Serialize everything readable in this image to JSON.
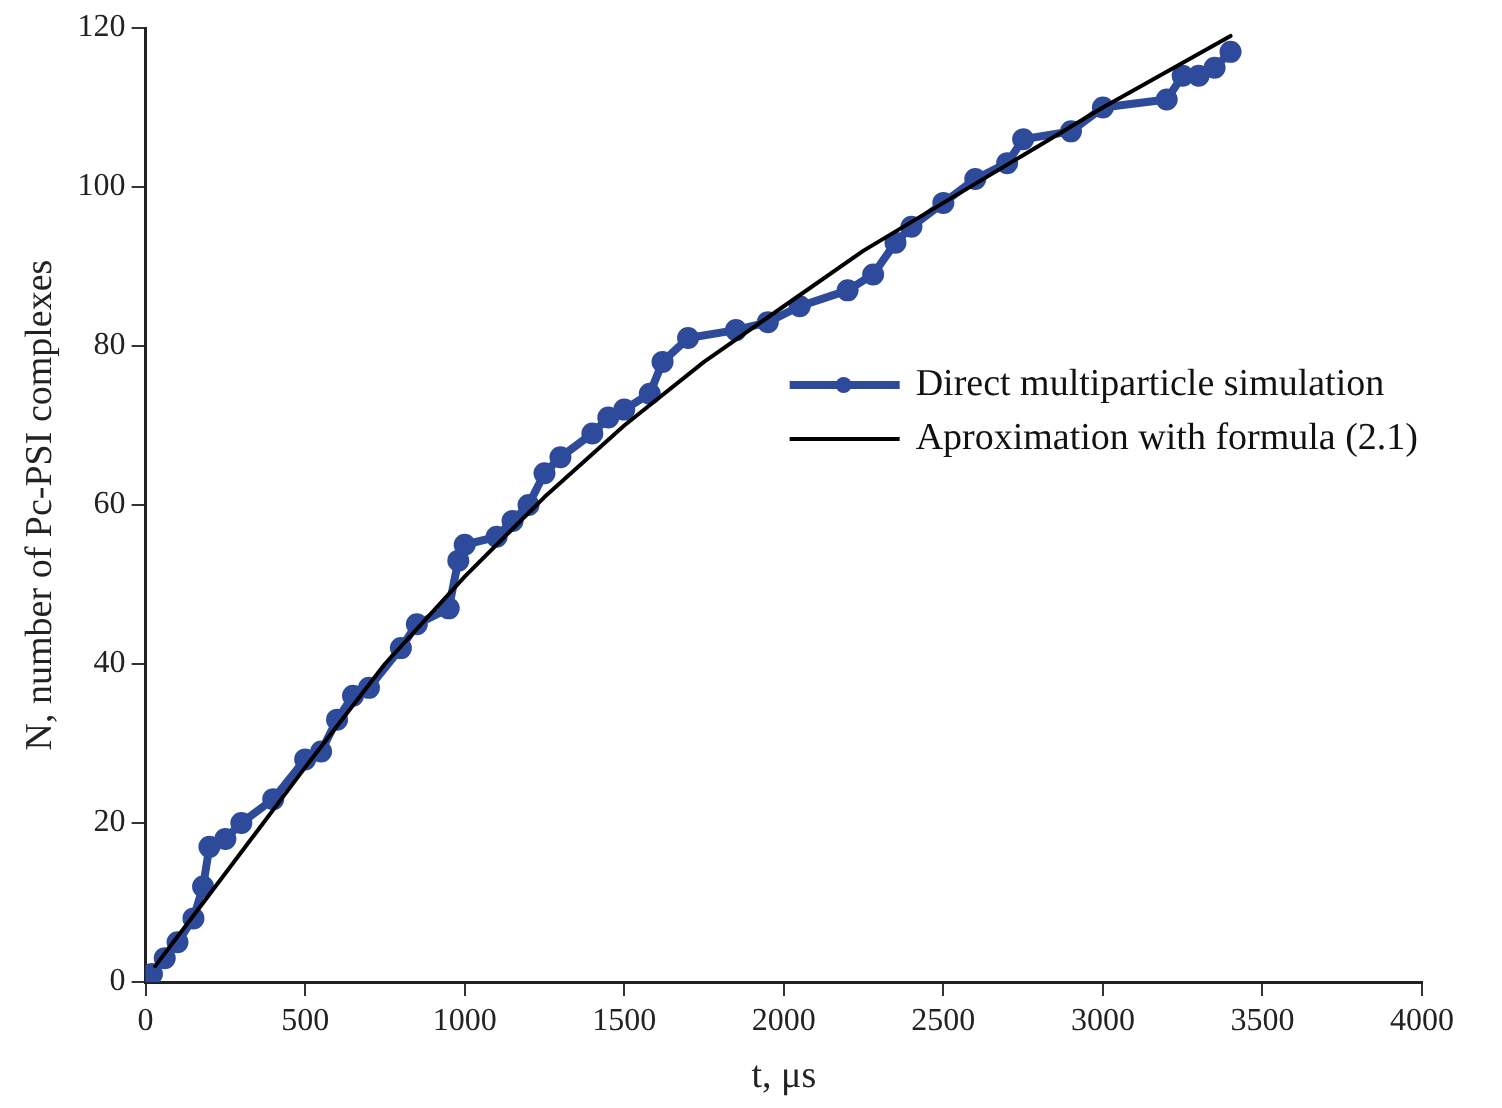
{
  "chart_data": {
    "type": "line",
    "xlabel": "t, μs",
    "ylabel": "N, number of Pc-PSI complexes",
    "xlim": [
      0,
      4000
    ],
    "xticks": [
      0,
      500,
      1000,
      1500,
      2000,
      2500,
      3000,
      3500,
      4000
    ],
    "ylim": [
      0,
      120
    ],
    "yticks": [
      0,
      20,
      40,
      60,
      80,
      100,
      120
    ],
    "grid": false,
    "legend": "right",
    "series": [
      {
        "name": "Direct multiparticle simulation",
        "color": "#2e4a9a",
        "marker": "circle",
        "x": [
          20,
          60,
          100,
          150,
          180,
          200,
          250,
          300,
          400,
          500,
          550,
          600,
          650,
          700,
          800,
          850,
          950,
          980,
          1000,
          1100,
          1150,
          1200,
          1250,
          1300,
          1400,
          1450,
          1500,
          1580,
          1620,
          1700,
          1850,
          1950,
          2050,
          2200,
          2280,
          2350,
          2400,
          2500,
          2600,
          2700,
          2750,
          2900,
          3000,
          3200,
          3250,
          3300,
          3350,
          3400
        ],
        "values": [
          1,
          3,
          5,
          8,
          12,
          17,
          18,
          20,
          23,
          28,
          29,
          33,
          36,
          37,
          42,
          45,
          47,
          53,
          55,
          56,
          58,
          60,
          64,
          66,
          69,
          71,
          72,
          74,
          78,
          81,
          82,
          83,
          85,
          87,
          89,
          93,
          95,
          98,
          101,
          103,
          106,
          107,
          110,
          111,
          114,
          114,
          115,
          117
        ]
      },
      {
        "name": "Aproximation with formula (2.1)",
        "color": "#000000",
        "marker": "none",
        "x": [
          30,
          200,
          500,
          750,
          1000,
          1250,
          1500,
          1750,
          2000,
          2250,
          2500,
          2750,
          3000,
          3400
        ],
        "values": [
          2,
          11,
          27,
          40,
          51,
          61,
          70,
          78,
          85,
          92,
          98,
          104,
          110,
          119
        ]
      }
    ]
  }
}
